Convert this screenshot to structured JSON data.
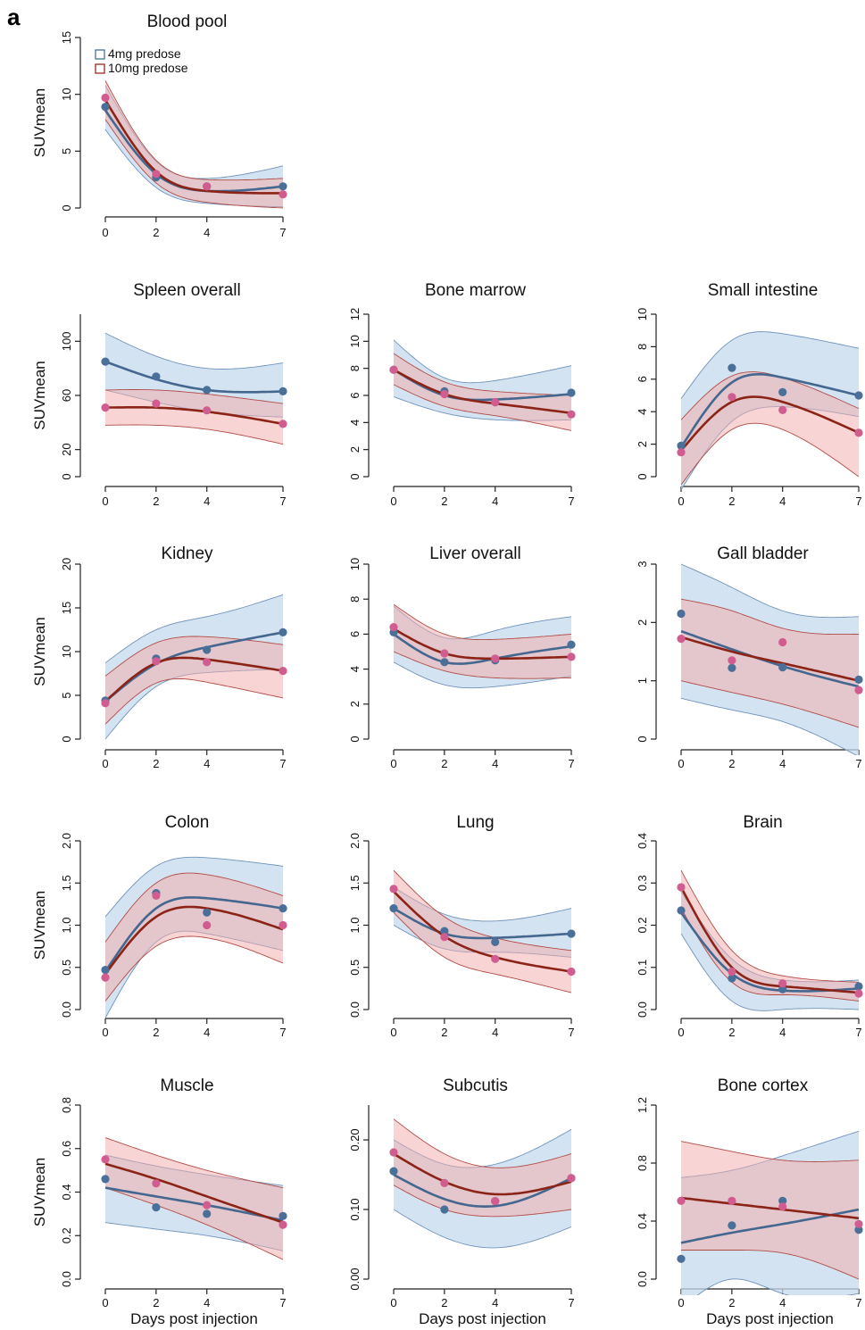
{
  "panel_label": "a",
  "legend": [
    {
      "label": "4mg predose",
      "color": "#4a6f98"
    },
    {
      "label": "10mg predose",
      "color": "#9b2a1e"
    }
  ],
  "colors": {
    "s1_line": "#44678f",
    "s1_point": "#4a6f98",
    "s1_band": "#c5d9ec",
    "s1_band_edge": "#6f93bb",
    "s2_line": "#8b2417",
    "s2_point": "#d15d90",
    "s2_band": "#f3a9a9",
    "s2_band_edge": "#b04c45"
  },
  "chart_data": [
    {
      "type": "line",
      "title": "Blood pool",
      "xlabel": "",
      "ylabel": "SUVmean",
      "x": [
        0,
        2,
        4,
        7
      ],
      "xticks": [
        "0",
        "2",
        "4",
        "7"
      ],
      "ylim": [
        0,
        15
      ],
      "yticks": [
        "0",
        "5",
        "10",
        "15"
      ],
      "series": [
        {
          "name": "4mg predose",
          "values": [
            8.9,
            2.7,
            1.9,
            1.9
          ],
          "fit": [
            8.6,
            3.0,
            1.5,
            1.9
          ],
          "lower": [
            6.9,
            1.8,
            0.4,
            0.1
          ],
          "upper": [
            10.8,
            4.1,
            2.6,
            3.7
          ]
        },
        {
          "name": "10mg predose",
          "values": [
            9.7,
            3.0,
            1.9,
            1.2
          ],
          "fit": [
            9.5,
            3.2,
            1.5,
            1.3
          ],
          "lower": [
            7.8,
            2.2,
            0.5,
            0.0
          ],
          "upper": [
            11.2,
            4.2,
            2.5,
            2.6
          ]
        }
      ]
    },
    {
      "type": "line",
      "title": "Spleen overall",
      "xlabel": "",
      "ylabel": "SUVmean",
      "x": [
        0,
        2,
        4,
        7
      ],
      "xticks": [
        "0",
        "2",
        "4",
        "7"
      ],
      "ylim": [
        0,
        120
      ],
      "yticks": [
        "0",
        "20",
        "60",
        "100"
      ],
      "series": [
        {
          "name": "4mg predose",
          "values": [
            85,
            74,
            64,
            63
          ],
          "fit": [
            85,
            72,
            64,
            63
          ],
          "lower": [
            64,
            55,
            48,
            44
          ],
          "upper": [
            106,
            89,
            80,
            84
          ]
        },
        {
          "name": "10mg predose",
          "values": [
            51,
            54,
            49,
            39
          ],
          "fit": [
            51,
            51,
            48,
            39
          ],
          "lower": [
            38,
            38,
            35,
            24
          ],
          "upper": [
            64,
            64,
            61,
            54
          ]
        }
      ]
    },
    {
      "type": "line",
      "title": "Bone marrow",
      "xlabel": "",
      "ylabel": "",
      "x": [
        0,
        2,
        4,
        7
      ],
      "xticks": [
        "0",
        "2",
        "4",
        "7"
      ],
      "ylim": [
        0,
        12
      ],
      "yticks": [
        "0",
        "2",
        "4",
        "6",
        "8",
        "10",
        "12"
      ],
      "series": [
        {
          "name": "4mg predose",
          "values": [
            7.9,
            6.3,
            5.5,
            6.2
          ],
          "fit": [
            7.9,
            6.0,
            5.7,
            6.1
          ],
          "lower": [
            5.9,
            4.7,
            4.2,
            4.2
          ],
          "upper": [
            10.1,
            7.3,
            7.1,
            8.2
          ]
        },
        {
          "name": "10mg predose",
          "values": [
            7.9,
            6.1,
            5.5,
            4.6
          ],
          "fit": [
            7.9,
            6.1,
            5.4,
            4.7
          ],
          "lower": [
            6.8,
            5.2,
            4.5,
            3.4
          ],
          "upper": [
            9.1,
            7.0,
            6.3,
            6.0
          ]
        }
      ]
    },
    {
      "type": "line",
      "title": "Small intestine",
      "xlabel": "",
      "ylabel": "",
      "x": [
        0,
        2,
        4,
        7
      ],
      "xticks": [
        "0",
        "2",
        "4",
        "7"
      ],
      "ylim": [
        0,
        10
      ],
      "yticks": [
        "0",
        "2",
        "4",
        "6",
        "8",
        "10"
      ],
      "series": [
        {
          "name": "4mg predose",
          "values": [
            1.9,
            6.7,
            5.2,
            5.0
          ],
          "fit": [
            1.8,
            5.8,
            6.1,
            5.0
          ],
          "lower": [
            -0.8,
            3.4,
            4.3,
            3.7
          ],
          "upper": [
            4.8,
            8.4,
            8.8,
            7.9
          ]
        },
        {
          "name": "10mg predose",
          "values": [
            1.5,
            4.9,
            4.1,
            2.7
          ],
          "fit": [
            1.6,
            4.6,
            4.6,
            2.7
          ],
          "lower": [
            -0.5,
            2.9,
            2.9,
            0.0
          ],
          "upper": [
            3.5,
            6.2,
            6.1,
            4.2
          ]
        }
      ]
    },
    {
      "type": "line",
      "title": "Kidney",
      "xlabel": "",
      "ylabel": "SUVmean",
      "x": [
        0,
        2,
        4,
        7
      ],
      "xticks": [
        "0",
        "2",
        "4",
        "7"
      ],
      "ylim": [
        0,
        20
      ],
      "yticks": [
        "0",
        "5",
        "10",
        "15",
        "20"
      ],
      "series": [
        {
          "name": "4mg predose",
          "values": [
            4.4,
            9.2,
            10.2,
            12.2
          ],
          "fit": [
            4.3,
            8.6,
            10.5,
            12.2
          ],
          "lower": [
            0.0,
            6.0,
            7.6,
            8.0
          ],
          "upper": [
            8.7,
            12.5,
            14.0,
            16.5
          ]
        },
        {
          "name": "10mg predose",
          "values": [
            4.1,
            8.9,
            8.8,
            7.8
          ],
          "fit": [
            4.3,
            8.7,
            9.1,
            7.8
          ],
          "lower": [
            1.7,
            6.4,
            6.5,
            4.7
          ],
          "upper": [
            7.2,
            11.0,
            11.7,
            10.8
          ]
        }
      ]
    },
    {
      "type": "line",
      "title": "Liver overall",
      "xlabel": "",
      "ylabel": "",
      "x": [
        0,
        2,
        4,
        7
      ],
      "xticks": [
        "0",
        "2",
        "4",
        "7"
      ],
      "ylim": [
        0,
        10
      ],
      "yticks": [
        "0",
        "2",
        "4",
        "6",
        "8",
        "10"
      ],
      "series": [
        {
          "name": "4mg predose",
          "values": [
            6.1,
            4.4,
            4.5,
            5.4
          ],
          "fit": [
            6.0,
            4.4,
            4.6,
            5.3
          ],
          "lower": [
            4.4,
            3.1,
            3.0,
            3.6
          ],
          "upper": [
            7.6,
            5.8,
            6.2,
            7.0
          ]
        },
        {
          "name": "10mg predose",
          "values": [
            6.4,
            4.9,
            4.6,
            4.7
          ],
          "fit": [
            6.3,
            4.9,
            4.6,
            4.7
          ],
          "lower": [
            5.0,
            3.9,
            3.5,
            3.5
          ],
          "upper": [
            7.7,
            6.0,
            5.7,
            6.0
          ]
        }
      ]
    },
    {
      "type": "line",
      "title": "Gall bladder",
      "xlabel": "",
      "ylabel": "",
      "x": [
        0,
        2,
        4,
        7
      ],
      "xticks": [
        "0",
        "2",
        "4",
        "7"
      ],
      "ylim": [
        0,
        3
      ],
      "yticks": [
        "0",
        "1",
        "2",
        "3"
      ],
      "series": [
        {
          "name": "4mg predose",
          "values": [
            2.15,
            1.22,
            1.23,
            1.02
          ],
          "fit": [
            1.85,
            1.54,
            1.25,
            0.9
          ],
          "lower": [
            0.7,
            0.5,
            0.3,
            -0.3
          ],
          "upper": [
            3.0,
            2.6,
            2.2,
            2.1
          ]
        },
        {
          "name": "10mg predose",
          "values": [
            1.72,
            1.35,
            1.66,
            0.84
          ],
          "fit": [
            1.75,
            1.5,
            1.3,
            1.0
          ],
          "lower": [
            1.0,
            0.8,
            0.6,
            0.2
          ],
          "upper": [
            2.4,
            2.2,
            1.9,
            1.8
          ]
        }
      ]
    },
    {
      "type": "line",
      "title": "Colon",
      "xlabel": "",
      "ylabel": "SUVmean",
      "x": [
        0,
        2,
        4,
        7
      ],
      "xticks": [
        "0",
        "2",
        "4",
        "7"
      ],
      "ylim": [
        0,
        2
      ],
      "yticks": [
        "0.0",
        "0.5",
        "1.0",
        "1.5",
        "2.0"
      ],
      "series": [
        {
          "name": "4mg predose",
          "values": [
            0.47,
            1.38,
            1.15,
            1.2
          ],
          "fit": [
            0.45,
            1.2,
            1.32,
            1.2
          ],
          "lower": [
            -0.1,
            0.8,
            0.9,
            0.7
          ],
          "upper": [
            1.1,
            1.7,
            1.8,
            1.7
          ]
        },
        {
          "name": "10mg predose",
          "values": [
            0.38,
            1.35,
            1.0,
            1.0
          ],
          "fit": [
            0.42,
            1.1,
            1.2,
            0.95
          ],
          "lower": [
            0.1,
            0.75,
            0.85,
            0.55
          ],
          "upper": [
            0.8,
            1.5,
            1.6,
            1.35
          ]
        }
      ]
    },
    {
      "type": "line",
      "title": "Lung",
      "xlabel": "",
      "ylabel": "",
      "x": [
        0,
        2,
        4,
        7
      ],
      "xticks": [
        "0",
        "2",
        "4",
        "7"
      ],
      "ylim": [
        0,
        2
      ],
      "yticks": [
        "0.0",
        "0.5",
        "1.0",
        "1.5",
        "2.0"
      ],
      "series": [
        {
          "name": "4mg predose",
          "values": [
            1.2,
            0.93,
            0.8,
            0.9
          ],
          "fit": [
            1.2,
            0.9,
            0.85,
            0.9
          ],
          "lower": [
            1.0,
            0.72,
            0.68,
            0.62
          ],
          "upper": [
            1.45,
            1.13,
            1.05,
            1.2
          ]
        },
        {
          "name": "10mg predose",
          "values": [
            1.43,
            0.86,
            0.6,
            0.45
          ],
          "fit": [
            1.4,
            0.87,
            0.62,
            0.45
          ],
          "lower": [
            1.15,
            0.62,
            0.42,
            0.2
          ],
          "upper": [
            1.65,
            1.1,
            0.85,
            0.7
          ]
        }
      ]
    },
    {
      "type": "line",
      "title": "Brain",
      "xlabel": "",
      "ylabel": "",
      "x": [
        0,
        2,
        4,
        7
      ],
      "xticks": [
        "0",
        "2",
        "4",
        "7"
      ],
      "ylim": [
        0,
        0.4
      ],
      "yticks": [
        "0.0",
        "0.1",
        "0.2",
        "0.3",
        "0.4"
      ],
      "series": [
        {
          "name": "4mg predose",
          "values": [
            0.235,
            0.074,
            0.048,
            0.055
          ],
          "fit": [
            0.23,
            0.085,
            0.045,
            0.05
          ],
          "lower": [
            0.18,
            0.02,
            0.0,
            0.0
          ],
          "upper": [
            0.28,
            0.12,
            0.07,
            0.07
          ]
        },
        {
          "name": "10mg predose",
          "values": [
            0.29,
            0.09,
            0.062,
            0.038
          ],
          "fit": [
            0.29,
            0.1,
            0.055,
            0.04
          ],
          "lower": [
            0.24,
            0.065,
            0.035,
            0.02
          ],
          "upper": [
            0.33,
            0.14,
            0.08,
            0.065
          ]
        }
      ]
    },
    {
      "type": "line",
      "title": "Muscle",
      "xlabel": "Days post injection",
      "ylabel": "SUVmean",
      "x": [
        0,
        2,
        4,
        7
      ],
      "xticks": [
        "0",
        "2",
        "4",
        "7"
      ],
      "ylim": [
        0,
        0.8
      ],
      "yticks": [
        "0.0",
        "0.2",
        "0.4",
        "0.6",
        "0.8"
      ],
      "series": [
        {
          "name": "4mg predose",
          "values": [
            0.46,
            0.33,
            0.3,
            0.29
          ],
          "fit": [
            0.42,
            0.38,
            0.34,
            0.27
          ],
          "lower": [
            0.26,
            0.23,
            0.2,
            0.13
          ],
          "upper": [
            0.57,
            0.52,
            0.48,
            0.43
          ]
        },
        {
          "name": "10mg predose",
          "values": [
            0.55,
            0.44,
            0.34,
            0.25
          ],
          "fit": [
            0.53,
            0.46,
            0.38,
            0.26
          ],
          "lower": [
            0.42,
            0.34,
            0.25,
            0.09
          ],
          "upper": [
            0.65,
            0.57,
            0.5,
            0.42
          ]
        }
      ]
    },
    {
      "type": "line",
      "title": "Subcutis",
      "xlabel": "Days post injection",
      "ylabel": "",
      "x": [
        0,
        2,
        4,
        7
      ],
      "xticks": [
        "0",
        "2",
        "4",
        "7"
      ],
      "ylim": [
        0,
        0.25
      ],
      "yticks": [
        "0.00",
        "0.10",
        "0.20"
      ],
      "series": [
        {
          "name": "4mg predose",
          "values": [
            0.155,
            0.1,
            0.112,
            0.145
          ],
          "fit": [
            0.15,
            0.115,
            0.105,
            0.145
          ],
          "lower": [
            0.1,
            0.06,
            0.045,
            0.075
          ],
          "upper": [
            0.2,
            0.165,
            0.165,
            0.215
          ]
        },
        {
          "name": "10mg predose",
          "values": [
            0.182,
            0.138,
            0.112,
            0.145
          ],
          "fit": [
            0.18,
            0.14,
            0.122,
            0.14
          ],
          "lower": [
            0.135,
            0.1,
            0.09,
            0.1
          ],
          "upper": [
            0.23,
            0.18,
            0.16,
            0.18
          ]
        }
      ]
    },
    {
      "type": "line",
      "title": "Bone cortex",
      "xlabel": "Days post injection",
      "ylabel": "",
      "x": [
        0,
        2,
        4,
        7
      ],
      "xticks": [
        "0",
        "2",
        "4",
        "7"
      ],
      "ylim": [
        0,
        1.2
      ],
      "yticks": [
        "0.0",
        "0.4",
        "0.8",
        "1.2"
      ],
      "series": [
        {
          "name": "4mg predose",
          "values": [
            0.14,
            0.37,
            0.54,
            0.34
          ],
          "fit": [
            0.25,
            0.32,
            0.38,
            0.48
          ],
          "lower": [
            -0.2,
            0.0,
            -0.1,
            -0.1
          ],
          "upper": [
            0.7,
            0.75,
            0.85,
            1.02
          ]
        },
        {
          "name": "10mg predose",
          "values": [
            0.54,
            0.54,
            0.5,
            0.38
          ],
          "fit": [
            0.56,
            0.52,
            0.48,
            0.42
          ],
          "lower": [
            0.2,
            0.2,
            0.18,
            0.0
          ],
          "upper": [
            0.95,
            0.88,
            0.82,
            0.82
          ]
        }
      ]
    }
  ]
}
